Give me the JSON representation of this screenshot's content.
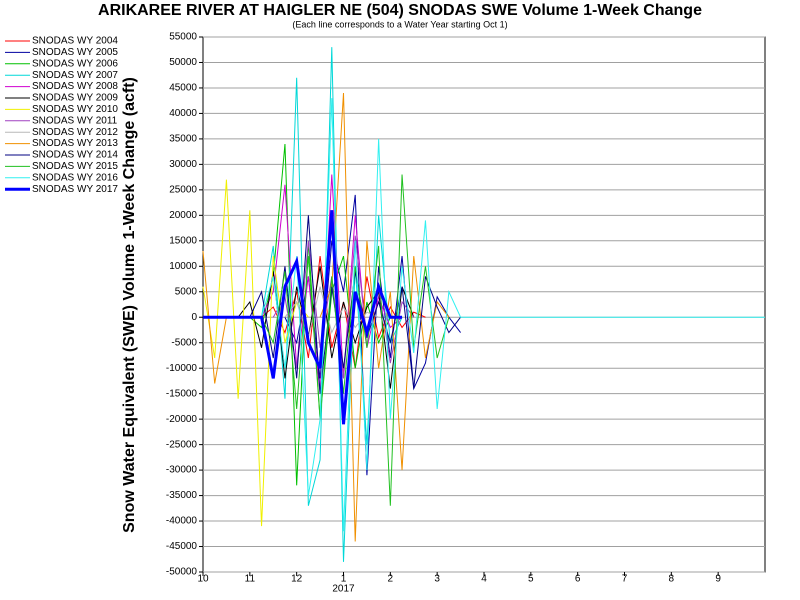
{
  "chart_data": {
    "type": "line",
    "title": "ARIKAREE RIVER AT HAIGLER NE (504) SNODAS SWE Volume 1-Week Change",
    "subtitle": "(Each line corresponds to a Water Year starting Oct 1)",
    "y_label": "Snow Water Equivalent (SWE) Volume 1-Week Change (acft)",
    "annotations": [
      {
        "text": "2017",
        "x": 3
      }
    ],
    "grid": true,
    "xlim": [
      0,
      12
    ],
    "xticks": [
      {
        "value": 0,
        "label": "10"
      },
      {
        "value": 1,
        "label": "11"
      },
      {
        "value": 2,
        "label": "12"
      },
      {
        "value": 3,
        "label": "1"
      },
      {
        "value": 4,
        "label": "2"
      },
      {
        "value": 5,
        "label": "3"
      },
      {
        "value": 6,
        "label": "4"
      },
      {
        "value": 7,
        "label": "5"
      },
      {
        "value": 8,
        "label": "6"
      },
      {
        "value": 9,
        "label": "7"
      },
      {
        "value": 10,
        "label": "8"
      },
      {
        "value": 11,
        "label": "9"
      }
    ],
    "ylim": [
      -50000,
      55000
    ],
    "yticks": [
      -50000,
      -45000,
      -40000,
      -35000,
      -30000,
      -25000,
      -20000,
      -15000,
      -10000,
      -5000,
      0,
      5000,
      10000,
      15000,
      20000,
      25000,
      30000,
      35000,
      40000,
      45000,
      50000,
      55000
    ],
    "x": [
      0,
      0.25,
      0.5,
      0.75,
      1,
      1.25,
      1.5,
      1.75,
      2,
      2.25,
      2.5,
      2.75,
      3,
      3.25,
      3.5,
      3.75,
      4,
      4.25,
      4.5,
      4.75,
      5,
      5.25,
      5.5,
      5.75,
      6,
      12
    ],
    "series": [
      {
        "name": "SNODAS WY 2004",
        "color": "#ff0000",
        "values": [
          null,
          null,
          null,
          null,
          null,
          0,
          2000,
          -3000,
          5000,
          -8000,
          12000,
          -6000,
          3000,
          -10000,
          8000,
          -4000,
          2000,
          -2000,
          1000,
          0,
          null,
          null,
          null,
          null,
          null,
          null
        ]
      },
      {
        "name": "SNODAS WY 2005",
        "color": "#0000a0",
        "values": [
          null,
          null,
          null,
          null,
          null,
          null,
          null,
          0,
          -5000,
          8000,
          -12000,
          15000,
          5000,
          24000,
          -31000,
          10000,
          -8000,
          12000,
          -14000,
          -9000,
          4000,
          0,
          -3000,
          null,
          null,
          null
        ]
      },
      {
        "name": "SNODAS WY 2006",
        "color": "#00c000",
        "values": [
          null,
          null,
          null,
          null,
          0,
          -2000,
          8000,
          34000,
          -33000,
          15000,
          -20000,
          5000,
          12000,
          -10000,
          3000,
          -5000,
          0,
          null,
          null,
          null,
          null,
          null,
          null,
          null,
          null,
          null
        ]
      },
      {
        "name": "SNODAS WY 2007",
        "color": "#00d8d8",
        "values": [
          null,
          null,
          null,
          null,
          null,
          0,
          14000,
          -16000,
          47000,
          -37000,
          -28000,
          53000,
          -48000,
          10000,
          -25000,
          20000,
          -5000,
          0,
          null,
          null,
          null,
          null,
          null,
          null,
          null,
          null
        ]
      },
      {
        "name": "SNODAS WY 2008",
        "color": "#d000d0",
        "values": [
          null,
          null,
          null,
          null,
          null,
          0,
          5000,
          26000,
          -10000,
          8000,
          -15000,
          28000,
          -12000,
          20000,
          -6000,
          4000,
          -2000,
          0,
          null,
          null,
          null,
          null,
          null,
          null,
          null,
          null
        ]
      },
      {
        "name": "SNODAS WY 2009",
        "color": "#000000",
        "values": [
          null,
          null,
          null,
          0,
          3000,
          -6000,
          9000,
          -12000,
          6000,
          -4000,
          10000,
          -8000,
          3000,
          -5000,
          2000,
          5000,
          -14000,
          6000,
          0,
          null,
          null,
          null,
          null,
          null,
          null,
          null
        ]
      },
      {
        "name": "SNODAS WY 2010",
        "color": "#f0f000",
        "values": [
          6000,
          -8000,
          27000,
          -16000,
          21000,
          -41000,
          12000,
          -5000,
          3000,
          0,
          null,
          null,
          null,
          null,
          null,
          null,
          null,
          null,
          null,
          null,
          null,
          null,
          null,
          null,
          null,
          null
        ]
      },
      {
        "name": "SNODAS WY 2011",
        "color": "#a040c0",
        "values": [
          null,
          null,
          null,
          null,
          null,
          null,
          0,
          4000,
          -10000,
          15000,
          -6000,
          8000,
          -12000,
          16000,
          -4000,
          6000,
          -9000,
          3000,
          0,
          null,
          null,
          null,
          null,
          null,
          null,
          null
        ]
      },
      {
        "name": "SNODAS WY 2012",
        "color": "#b8b8b8",
        "values": [
          null,
          null,
          null,
          null,
          null,
          null,
          null,
          0,
          3000,
          -4000,
          6000,
          -3000,
          2000,
          -2000,
          1000,
          0,
          null,
          null,
          null,
          null,
          null,
          null,
          null,
          null,
          null,
          null
        ]
      },
      {
        "name": "SNODAS WY 2013",
        "color": "#f09000",
        "values": [
          13000,
          -13000,
          0,
          null,
          null,
          null,
          null,
          null,
          null,
          null,
          0,
          6000,
          44000,
          -44000,
          15000,
          -10000,
          5000,
          -30000,
          12000,
          -8000,
          3000,
          0,
          null,
          null,
          null,
          null
        ]
      },
      {
        "name": "SNODAS WY 2014",
        "color": "#000080",
        "values": [
          null,
          null,
          null,
          null,
          0,
          5000,
          -8000,
          10000,
          -12000,
          20000,
          -15000,
          6000,
          -10000,
          9000,
          -4000,
          3000,
          -5000,
          6000,
          -14000,
          8000,
          2000,
          -3000,
          0,
          null,
          null,
          null
        ]
      },
      {
        "name": "SNODAS WY 2015",
        "color": "#20c020",
        "values": [
          null,
          null,
          null,
          null,
          null,
          0,
          -5000,
          9000,
          -18000,
          12000,
          -20000,
          8000,
          -15000,
          10000,
          -6000,
          14000,
          -37000,
          28000,
          -6000,
          10000,
          -8000,
          0,
          null,
          null,
          null,
          null
        ]
      },
      {
        "name": "SNODAS WY 2016",
        "color": "#30f0f0",
        "values": [
          null,
          null,
          null,
          null,
          null,
          0,
          8000,
          -10000,
          12000,
          -35000,
          -20000,
          43000,
          -42000,
          15000,
          -30000,
          35000,
          -20000,
          10000,
          -7000,
          19000,
          -18000,
          5000,
          0,
          0,
          0,
          0
        ]
      },
      {
        "name": "SNODAS WY 2017",
        "color": "#0000ff",
        "width": 3,
        "values": [
          0,
          0,
          0,
          0,
          0,
          0,
          -12000,
          6000,
          11000,
          -5000,
          -10000,
          21000,
          -21000,
          5000,
          -3000,
          6000,
          0,
          0,
          null,
          null,
          null,
          null,
          null,
          null,
          null,
          null
        ]
      }
    ]
  }
}
